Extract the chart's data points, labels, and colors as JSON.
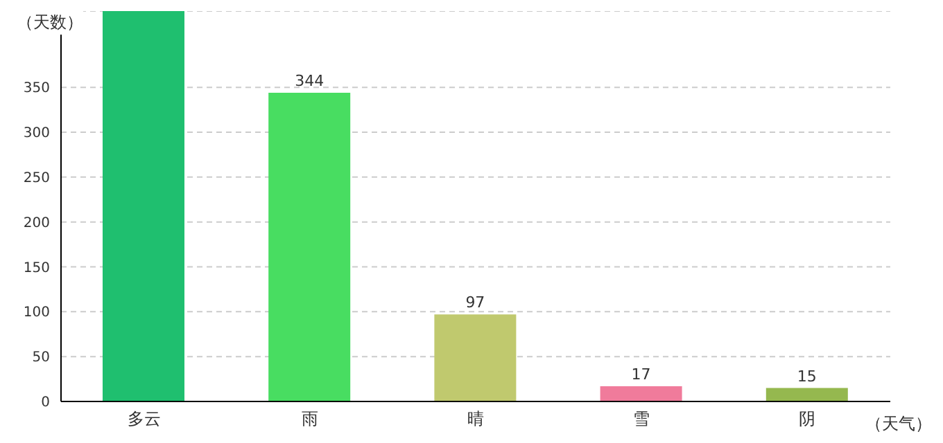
{
  "chart_data": {
    "type": "bar",
    "xlabel": "（天气）",
    "ylabel": "（天数）",
    "categories": [
      "多云",
      "雨",
      "晴",
      "雪",
      "阴"
    ],
    "values": [
      435,
      344,
      97,
      17,
      15
    ],
    "value_labels": [
      null,
      "344",
      "97",
      "17",
      "15"
    ],
    "colors": [
      "#1fbf6f",
      "#48dd61",
      "#c0c96e",
      "#f07b9b",
      "#95b84f"
    ],
    "ylim": [
      0,
      435
    ],
    "yticks": [
      0,
      50,
      100,
      150,
      200,
      250,
      300,
      350
    ],
    "grid": "y"
  }
}
